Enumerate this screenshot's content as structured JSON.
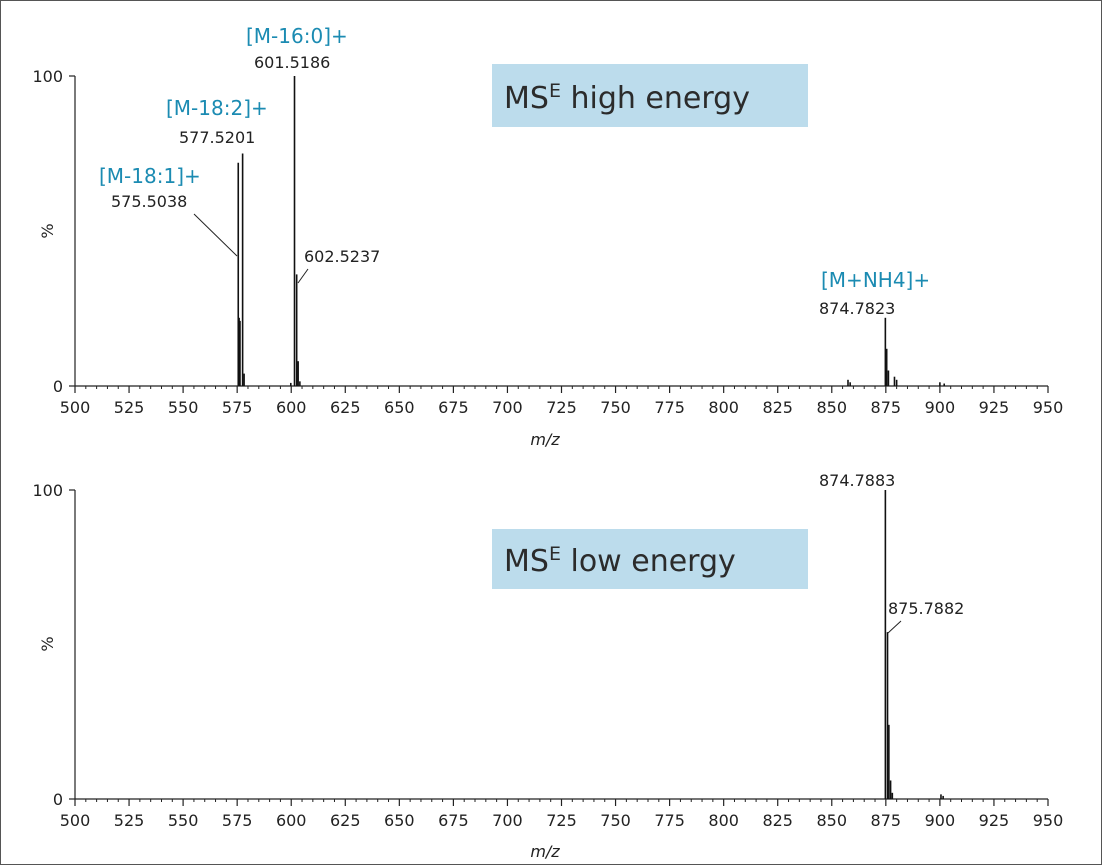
{
  "colors": {
    "axis": "#222222",
    "peak": "#111111",
    "annotation_text": "#1b8bb2",
    "label_box": "#bcdcec"
  },
  "chart_data": [
    {
      "type": "bar",
      "xlabel": "m/z",
      "ylabel": "%",
      "xlim": [
        500,
        950
      ],
      "ylim": [
        0,
        100
      ],
      "x_ticks": [
        "500",
        "525",
        "550",
        "575",
        "600",
        "625",
        "650",
        "675",
        "700",
        "725",
        "750",
        "775",
        "800",
        "825",
        "850",
        "875",
        "900",
        "925",
        "950"
      ],
      "y_ticks": [
        "0",
        "100"
      ],
      "mode_label": {
        "main": "MS",
        "sup": "E",
        "rest": " high energy"
      },
      "peaks": [
        {
          "x": 575.5038,
          "y": 72
        },
        {
          "x": 577.5201,
          "y": 75
        },
        {
          "x": 575.9,
          "y": 22
        },
        {
          "x": 576.3,
          "y": 21
        },
        {
          "x": 578.2,
          "y": 4
        },
        {
          "x": 601.5186,
          "y": 100
        },
        {
          "x": 602.5237,
          "y": 36
        },
        {
          "x": 603.2,
          "y": 8
        },
        {
          "x": 599.8,
          "y": 1
        },
        {
          "x": 604.0,
          "y": 1.5
        },
        {
          "x": 874.7823,
          "y": 22
        },
        {
          "x": 875.4,
          "y": 12
        },
        {
          "x": 876.2,
          "y": 5
        },
        {
          "x": 879.0,
          "y": 3
        },
        {
          "x": 880.0,
          "y": 2
        },
        {
          "x": 857.5,
          "y": 2
        },
        {
          "x": 858.5,
          "y": 1.2
        },
        {
          "x": 900.0,
          "y": 1.2
        },
        {
          "x": 902.0,
          "y": 0.8
        }
      ],
      "annotations": [
        {
          "ion": "[M-18:1]+",
          "mz": "575.5038"
        },
        {
          "ion": "[M-18:2]+",
          "mz": "577.5201"
        },
        {
          "ion": "[M-16:0]+",
          "mz": "601.5186"
        },
        {
          "ion": "",
          "mz": "602.5237"
        },
        {
          "ion": "[M+NH4]+",
          "mz": "874.7823"
        }
      ]
    },
    {
      "type": "bar",
      "xlabel": "m/z",
      "ylabel": "%",
      "xlim": [
        500,
        950
      ],
      "ylim": [
        0,
        100
      ],
      "x_ticks": [
        "500",
        "525",
        "550",
        "575",
        "600",
        "625",
        "650",
        "675",
        "700",
        "725",
        "750",
        "775",
        "800",
        "825",
        "850",
        "875",
        "900",
        "925",
        "950"
      ],
      "y_ticks": [
        "0",
        "100"
      ],
      "mode_label": {
        "main": "MS",
        "sup": "E",
        "rest": " low energy"
      },
      "peaks": [
        {
          "x": 874.7883,
          "y": 100
        },
        {
          "x": 875.7882,
          "y": 54
        },
        {
          "x": 876.4,
          "y": 24
        },
        {
          "x": 877.2,
          "y": 6
        },
        {
          "x": 878.0,
          "y": 2
        },
        {
          "x": 900.5,
          "y": 1.5
        },
        {
          "x": 901.5,
          "y": 1
        }
      ],
      "annotations": [
        {
          "ion": "",
          "mz": "874.7883"
        },
        {
          "ion": "",
          "mz": "875.7882"
        }
      ]
    }
  ]
}
